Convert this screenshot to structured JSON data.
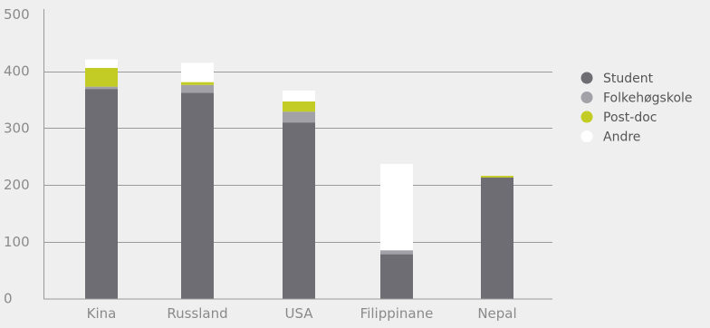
{
  "chart_data": {
    "type": "bar",
    "stacked": true,
    "categories": [
      "Kina",
      "Russland",
      "USA",
      "Filippinane",
      "Nepal"
    ],
    "series": [
      {
        "name": "Student",
        "color": "#6e6d74",
        "values": [
          369,
          362,
          310,
          78,
          213
        ]
      },
      {
        "name": "Folkehøgskole",
        "color": "#a2a1a8",
        "values": [
          4,
          14,
          19,
          7,
          0
        ]
      },
      {
        "name": "Post-doc",
        "color": "#c3cc24",
        "values": [
          33,
          5,
          18,
          0,
          3
        ]
      },
      {
        "name": "Andre",
        "color": "#ffffff",
        "values": [
          15,
          34,
          19,
          152,
          0
        ]
      }
    ],
    "y_ticks": [
      0,
      100,
      200,
      300,
      400,
      500
    ],
    "ylim": [
      0,
      500
    ],
    "gridlines": [
      100,
      200,
      300,
      400
    ],
    "legend_position": "right",
    "colors": {
      "background": "#efefef",
      "axis": "#9a9a9a",
      "grid": "#9a9a9a",
      "tick_label": "#8a8a8a",
      "legend_label": "#555555"
    }
  }
}
